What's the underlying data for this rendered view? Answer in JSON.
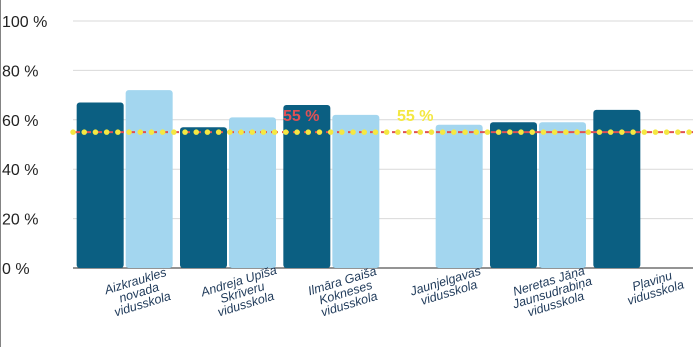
{
  "chart_data": {
    "type": "bar",
    "title": "",
    "xlabel": "",
    "ylabel": "",
    "ylim": [
      0,
      100
    ],
    "yticks": [
      "0 %",
      "20 %",
      "40 %",
      "60 %",
      "80 %",
      "100 %"
    ],
    "grid": true,
    "categories": [
      [
        "Aizkraukles",
        "novada",
        "vidusskola"
      ],
      [
        "Andreja Upīša",
        "Skrīveru",
        "vidusskola"
      ],
      [
        "Ilmāra Gaiša",
        "Kokneses",
        "vidusskola"
      ],
      [
        "Jaunjelgavas",
        "vidusskola"
      ],
      [
        "Neretas Jāņa",
        "Jaunsudrabiņa",
        "vidusskola"
      ],
      [
        "Pļaviņu",
        "vidusskola"
      ]
    ],
    "series": [
      {
        "values": [
          67,
          57,
          66,
          null,
          59,
          64
        ],
        "color": "#0b5f82"
      },
      {
        "values": [
          72,
          61,
          62,
          58,
          59,
          null
        ],
        "color": "#a3d6ef"
      }
    ],
    "reference_lines": [
      {
        "value": 55,
        "label": "55 %",
        "color": "#e05055",
        "style": "dashed"
      },
      {
        "value": 55,
        "label": "55 %",
        "color": "#f4e842",
        "style": "dotted"
      }
    ]
  }
}
